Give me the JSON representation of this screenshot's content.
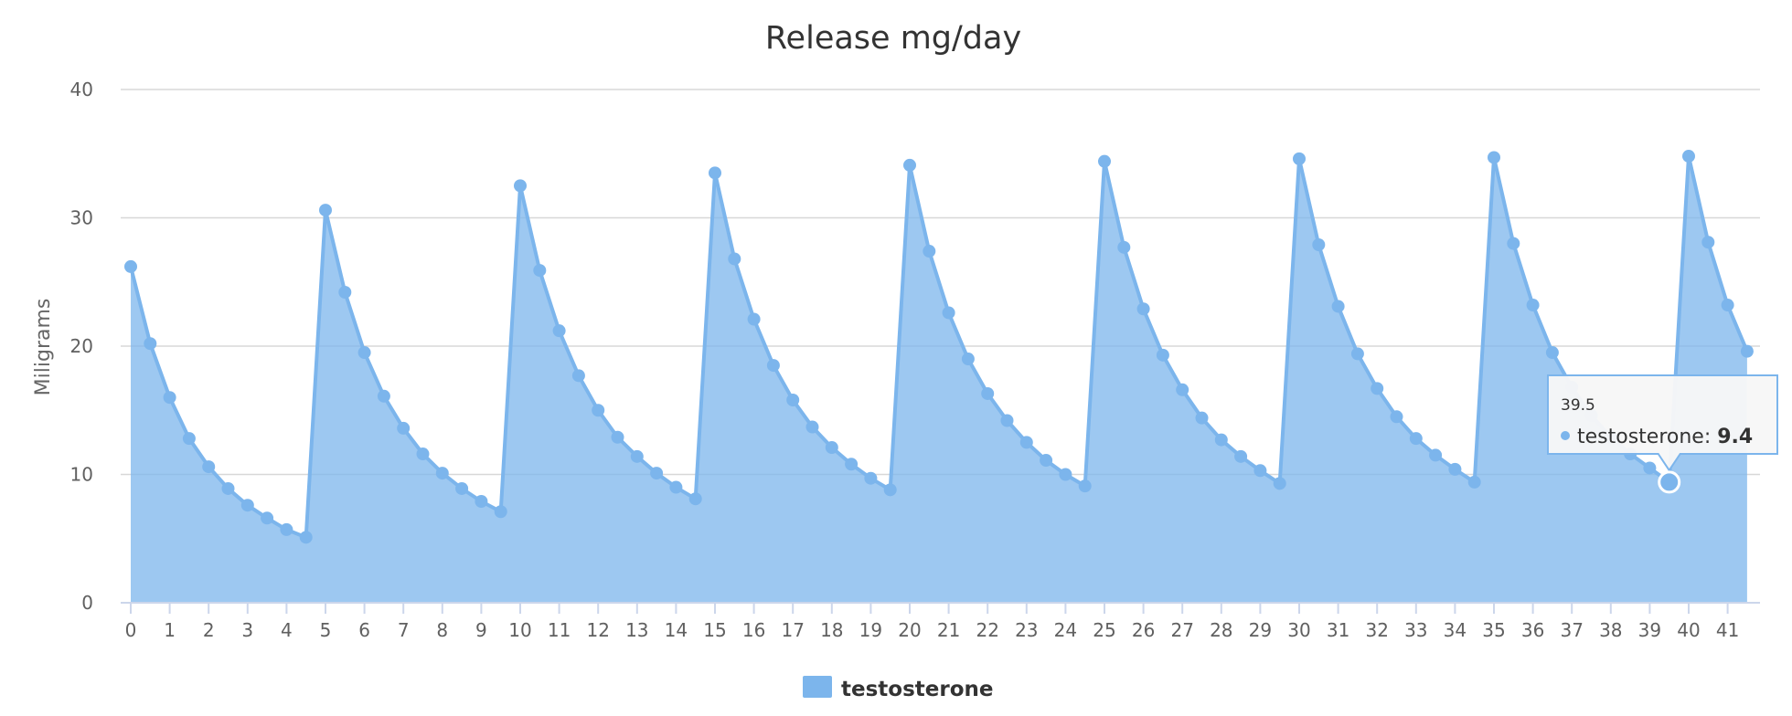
{
  "chart_data": {
    "type": "area",
    "title": "Release mg/day",
    "ylabel": "Miligrams",
    "xlabel": "",
    "ylim": [
      0,
      40
    ],
    "yticks": [
      0,
      10,
      20,
      30,
      40
    ],
    "xlim": [
      0,
      41.5
    ],
    "xticks": [
      0,
      1,
      2,
      3,
      4,
      5,
      6,
      7,
      8,
      9,
      10,
      11,
      12,
      13,
      14,
      15,
      16,
      17,
      18,
      19,
      20,
      21,
      22,
      23,
      24,
      25,
      26,
      27,
      28,
      29,
      30,
      31,
      32,
      33,
      34,
      35,
      36,
      37,
      38,
      39,
      40,
      41
    ],
    "grid": true,
    "legend_position": "bottom-center",
    "series": [
      {
        "name": "testosterone",
        "color": "#7cb5ec",
        "x": [
          0,
          0.5,
          1,
          1.5,
          2,
          2.5,
          3,
          3.5,
          4,
          4.5,
          5,
          5.5,
          6,
          6.5,
          7,
          7.5,
          8,
          8.5,
          9,
          9.5,
          10,
          10.5,
          11,
          11.5,
          12,
          12.5,
          13,
          13.5,
          14,
          14.5,
          15,
          15.5,
          16,
          16.5,
          17,
          17.5,
          18,
          18.5,
          19,
          19.5,
          20,
          20.5,
          21,
          21.5,
          22,
          22.5,
          23,
          23.5,
          24,
          24.5,
          25,
          25.5,
          26,
          26.5,
          27,
          27.5,
          28,
          28.5,
          29,
          29.5,
          30,
          30.5,
          31,
          31.5,
          32,
          32.5,
          33,
          33.5,
          34,
          34.5,
          35,
          35.5,
          36,
          36.5,
          37,
          37.5,
          38,
          38.5,
          39,
          39.5,
          40,
          40.5,
          41,
          41.5
        ],
        "values": [
          26.2,
          20.2,
          16.0,
          12.8,
          10.6,
          8.9,
          7.6,
          6.6,
          5.7,
          5.1,
          30.6,
          24.2,
          19.5,
          16.1,
          13.6,
          11.6,
          10.1,
          8.9,
          7.9,
          7.1,
          32.5,
          25.9,
          21.2,
          17.7,
          15.0,
          12.9,
          11.4,
          10.1,
          9.0,
          8.1,
          33.5,
          26.8,
          22.1,
          18.5,
          15.8,
          13.7,
          12.1,
          10.8,
          9.7,
          8.8,
          34.1,
          27.4,
          22.6,
          19.0,
          16.3,
          14.2,
          12.5,
          11.1,
          10.0,
          9.1,
          34.4,
          27.7,
          22.9,
          19.3,
          16.6,
          14.4,
          12.7,
          11.4,
          10.3,
          9.3,
          34.6,
          27.9,
          23.1,
          19.4,
          16.7,
          14.5,
          12.8,
          11.5,
          10.4,
          9.4,
          34.7,
          28.0,
          23.2,
          19.5,
          16.8,
          14.6,
          12.9,
          11.6,
          10.5,
          9.4,
          34.8,
          28.1,
          23.2,
          19.6
        ]
      }
    ],
    "tooltip": {
      "x_label": "39.5",
      "series_name": "testosterone",
      "value_label": "9.4",
      "point_x": 39.5,
      "point_y": 9.4
    }
  }
}
